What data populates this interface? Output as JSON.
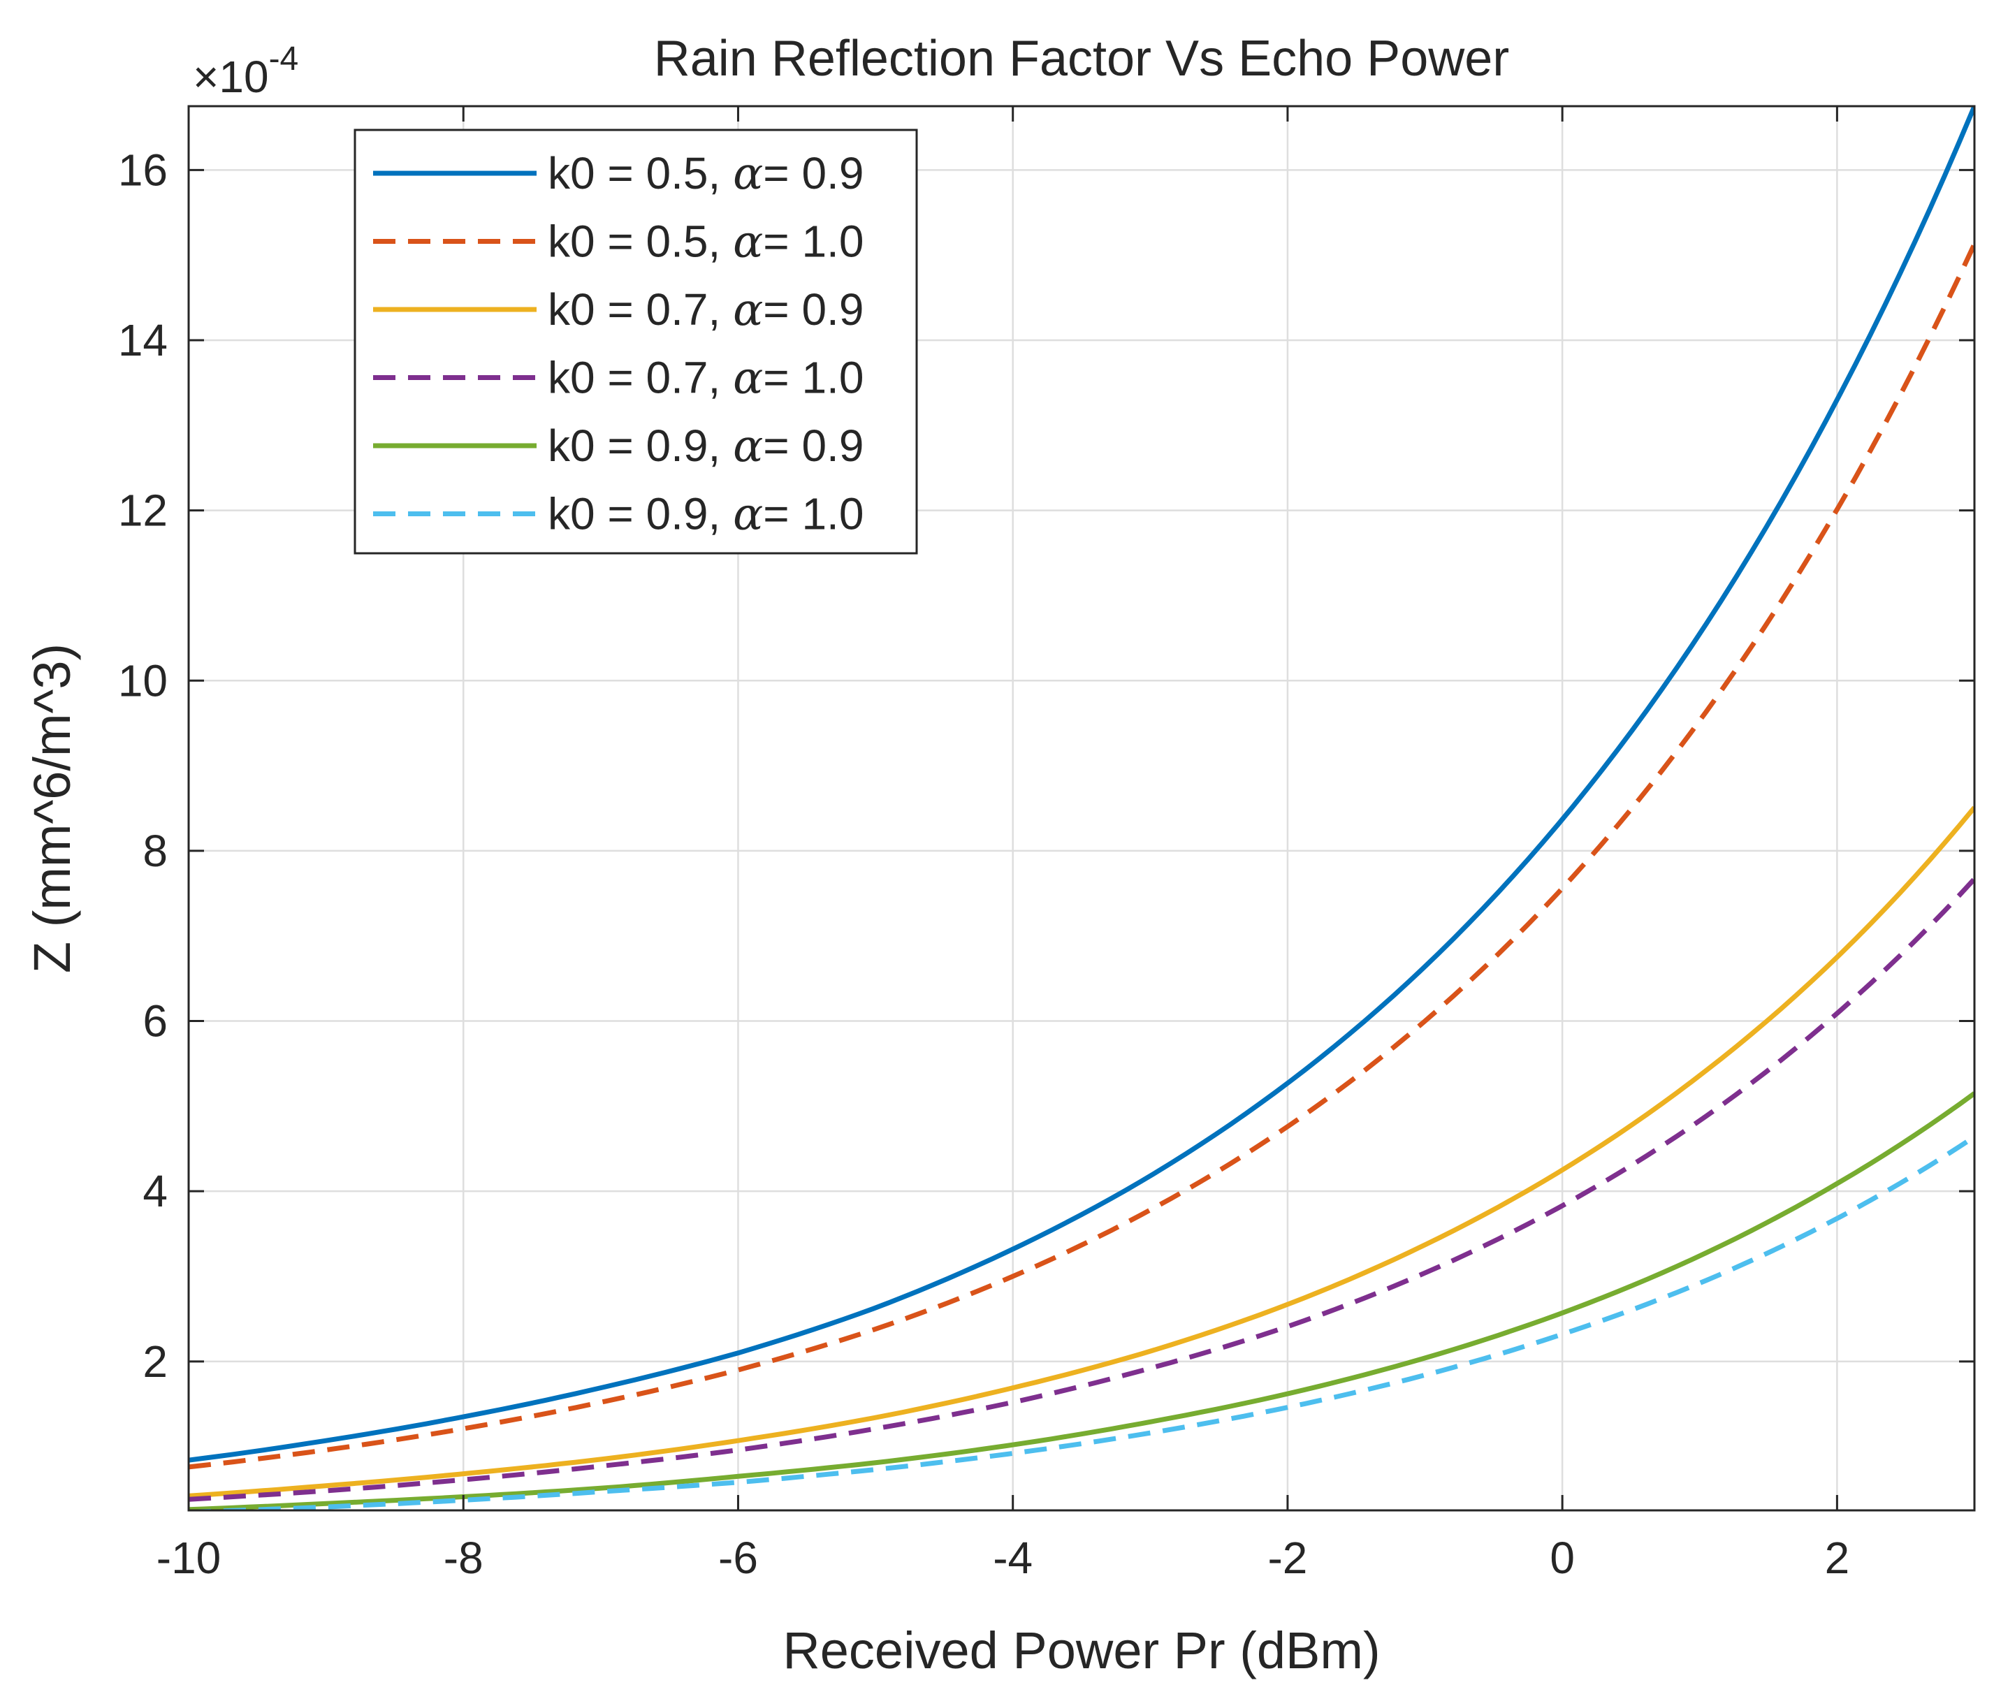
{
  "chart_data": {
    "type": "line",
    "title": "Rain Reflection Factor Vs Echo Power",
    "xlabel": "Received Power Pr (dBm)",
    "ylabel": "Z (mm^6/m^3)",
    "exponent_label": {
      "base": "×10",
      "power": "-4"
    },
    "xlim": [
      -10,
      3
    ],
    "ylim": [
      0.25,
      16.75
    ],
    "xticks": [
      -10,
      -8,
      -6,
      -4,
      -2,
      0,
      2
    ],
    "xtick_labels": [
      "-10",
      "-8",
      "-6",
      "-4",
      "-2",
      "0",
      "2"
    ],
    "yticks": [
      2,
      4,
      6,
      8,
      10,
      12,
      14,
      16
    ],
    "ytick_labels": [
      "2",
      "4",
      "6",
      "8",
      "10",
      "12",
      "14",
      "16"
    ],
    "grid": true,
    "legend_position": "top-left",
    "x": [
      -10,
      -9,
      -8,
      -7,
      -6,
      -5,
      -4,
      -3,
      -2,
      -1,
      0,
      1,
      2,
      3
    ],
    "series": [
      {
        "name": "k0 = 0.5, α= 0.9",
        "label_prefix": "k0 = 0.5, ",
        "alpha_symbol": "α",
        "label_suffix": "= 0.9",
        "color": "#0072BD",
        "dash": "solid",
        "values": [
          0.84,
          1.07,
          1.35,
          1.69,
          2.1,
          2.63,
          3.32,
          4.18,
          5.27,
          6.64,
          8.37,
          10.55,
          13.3,
          16.75
        ]
      },
      {
        "name": "k0 = 0.5, α= 1.0",
        "label_prefix": "k0 = 0.5, ",
        "alpha_symbol": "α",
        "label_suffix": "= 1.0",
        "color": "#D95319",
        "dash": "dashed",
        "values": [
          0.76,
          0.96,
          1.21,
          1.52,
          1.9,
          2.38,
          3.0,
          3.78,
          4.76,
          6.0,
          7.56,
          9.53,
          12.01,
          15.13
        ]
      },
      {
        "name": "k0 = 0.7, α= 0.9",
        "label_prefix": "k0 = 0.7, ",
        "alpha_symbol": "α",
        "label_suffix": "= 0.9",
        "color": "#EDB120",
        "dash": "solid",
        "values": [
          0.42,
          0.54,
          0.68,
          0.85,
          1.07,
          1.34,
          1.69,
          2.12,
          2.67,
          3.37,
          4.25,
          5.36,
          6.75,
          8.51
        ]
      },
      {
        "name": "k0 = 0.7, α= 1.0",
        "label_prefix": "k0 = 0.7, ",
        "alpha_symbol": "α",
        "label_suffix": "= 1.0",
        "color": "#7E2F8E",
        "dash": "dashed",
        "values": [
          0.38,
          0.48,
          0.61,
          0.77,
          0.96,
          1.21,
          1.52,
          1.92,
          2.41,
          3.04,
          3.83,
          4.83,
          6.09,
          7.67
        ]
      },
      {
        "name": "k0 = 0.9, α= 0.9",
        "label_prefix": "k0 = 0.9, ",
        "alpha_symbol": "α",
        "label_suffix": "= 0.9",
        "color": "#77AC30",
        "dash": "solid",
        "values": [
          0.26,
          0.33,
          0.41,
          0.51,
          0.65,
          0.81,
          1.02,
          1.29,
          1.62,
          2.04,
          2.57,
          3.24,
          4.09,
          5.15
        ]
      },
      {
        "name": "k0 = 0.9, α= 1.0",
        "label_prefix": "k0 = 0.9, ",
        "alpha_symbol": "α",
        "label_suffix": "= 1.0",
        "color": "#4DBEEE",
        "dash": "dashed",
        "values": [
          0.23,
          0.29,
          0.37,
          0.47,
          0.58,
          0.73,
          0.92,
          1.16,
          1.46,
          1.84,
          2.32,
          2.92,
          3.68,
          4.64
        ]
      }
    ]
  }
}
